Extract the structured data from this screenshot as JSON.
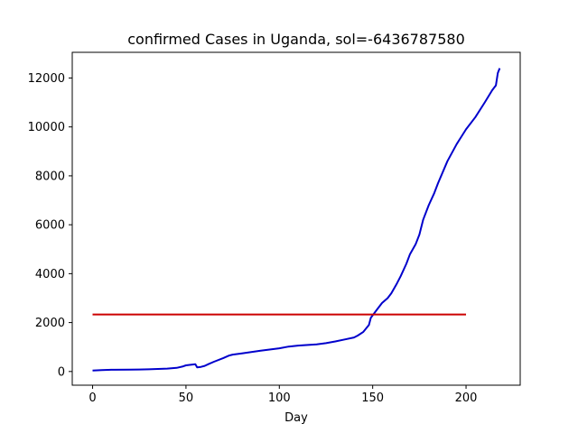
{
  "chart_data": {
    "type": "line",
    "title": "confirmed Cases in Uganda, sol=-6436787580",
    "xlabel": "Day",
    "ylabel": "",
    "xlim": [
      -10.9,
      229
    ],
    "ylim": [
      -560,
      13050
    ],
    "x_ticks": [
      0,
      50,
      100,
      150,
      200
    ],
    "x_tick_labels": [
      "0",
      "50",
      "100",
      "150",
      "200"
    ],
    "y_ticks": [
      0,
      2000,
      4000,
      6000,
      8000,
      10000,
      12000
    ],
    "y_tick_labels": [
      "0",
      "2000",
      "4000",
      "6000",
      "8000",
      "10000",
      "12000"
    ],
    "grid": false,
    "series": [
      {
        "color": "#0000cc",
        "x": [
          0,
          5,
          10,
          20,
          25,
          30,
          40,
          45,
          48,
          50,
          52,
          55,
          56,
          58,
          60,
          62,
          65,
          70,
          73,
          75,
          80,
          90,
          100,
          105,
          110,
          120,
          125,
          130,
          135,
          140,
          142,
          145,
          148,
          149,
          150,
          152,
          155,
          158,
          160,
          163,
          165,
          168,
          170,
          173,
          175,
          177,
          180,
          183,
          185,
          190,
          195,
          200,
          205,
          210,
          214,
          216,
          217,
          218
        ],
        "y": [
          40,
          60,
          70,
          75,
          80,
          90,
          120,
          150,
          200,
          250,
          270,
          300,
          170,
          190,
          230,
          300,
          400,
          550,
          650,
          690,
          740,
          850,
          950,
          1020,
          1060,
          1110,
          1160,
          1230,
          1310,
          1390,
          1470,
          1620,
          1900,
          2200,
          2300,
          2500,
          2800,
          3000,
          3200,
          3600,
          3900,
          4400,
          4800,
          5200,
          5600,
          6200,
          6800,
          7300,
          7700,
          8600,
          9300,
          9900,
          10400,
          11000,
          11500,
          11700,
          12200,
          12400
        ]
      },
      {
        "color": "#cc0000",
        "x": [
          0,
          200
        ],
        "y": [
          2330,
          2330
        ]
      }
    ]
  }
}
